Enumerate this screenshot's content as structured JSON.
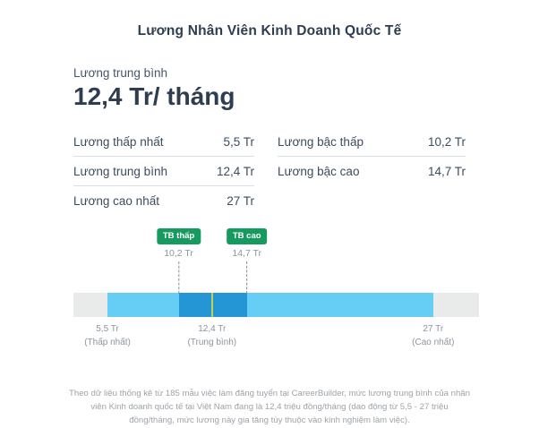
{
  "page": {
    "title": "Lương Nhân Viên Kinh Doanh Quốc Tế"
  },
  "summary": {
    "label": "Lương trung bình",
    "value": "12,4 Tr/ tháng"
  },
  "stats": {
    "left": [
      {
        "label": "Lương thấp nhất",
        "value": "5,5 Tr"
      },
      {
        "label": "Lương trung bình",
        "value": "12,4 Tr"
      },
      {
        "label": "Lương cao nhất",
        "value": "27 Tr"
      }
    ],
    "right": [
      {
        "label": "Lương bậc thấp",
        "value": "10,2 Tr"
      },
      {
        "label": "Lương bậc cao",
        "value": "14,7 Tr"
      }
    ]
  },
  "chart_data": {
    "type": "bar",
    "subtype": "salary-range-gauge",
    "unit": "Tr (triệu đồng/tháng)",
    "min": 5.5,
    "max": 27,
    "average": 12.4,
    "band_low": 10.2,
    "band_high": 14.7,
    "markers": [
      {
        "label": "TB thấp",
        "value": 10.2,
        "value_label": "10,2 Tr"
      },
      {
        "label": "TB cao",
        "value": 14.7,
        "value_label": "14,7 Tr"
      }
    ],
    "axis_labels": [
      {
        "value": 5.5,
        "line1": "5,5 Tr",
        "line2": "(Thấp nhất)"
      },
      {
        "value": 12.4,
        "line1": "12,4 Tr",
        "line2": "(Trung bình)"
      },
      {
        "value": 27,
        "line1": "27 Tr",
        "line2": "(Cao nhất)"
      }
    ],
    "scale": {
      "pct_at_min": 8.4,
      "pct_at_max": 88.7
    },
    "colors": {
      "track": "#e9ebeb",
      "range": "#66cdf5",
      "band": "#2496d5",
      "average_line": "#bfd34f",
      "badge": "#179a5f"
    }
  },
  "footer": {
    "note": "Theo dữ liệu thống kê từ 185 mẫu việc làm đăng tuyển tại CareerBuilder, mức lương trung bình của nhân viên Kinh doanh quốc tế tại Việt Nam đang là 12,4 triệu đồng/tháng (dao động từ 5,5 - 27 triệu đồng/tháng, mức lương này gia tăng tùy thuộc vào kinh nghiệm làm việc)."
  }
}
